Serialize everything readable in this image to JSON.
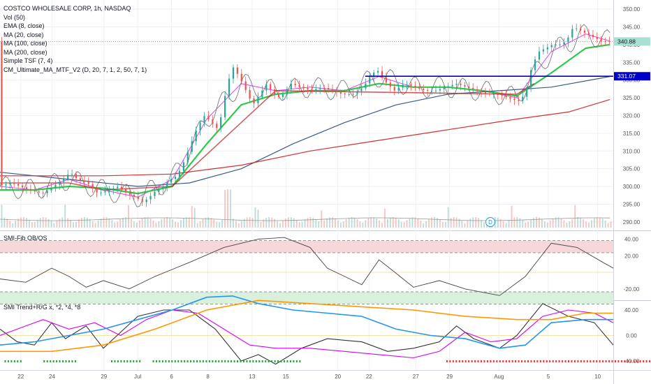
{
  "header": {
    "title": "COSTCO WHOLESALE CORP, 1h, NASDAQ",
    "indicators": [
      "Vol (50)",
      "EMA (8, close)",
      "MA (20, close)",
      "MA (100, close)",
      "MA (200, close)",
      "Simple TSF (7, 4)",
      "CM_Ultimate_MA_MTF_V2 (D, 20, 7, 1, 2, 50, 7, 1)"
    ]
  },
  "panes": {
    "smi_fib_title": "SMI-Fib OB/OS",
    "smi_trend_title": "SMI Trend+R/G x, *2, *4, *8"
  },
  "colors": {
    "up": "#26a69a",
    "down": "#ef5350",
    "ema": "#e040fb",
    "ma20": "#2ec94a",
    "ma100": "#3c5a86",
    "ma200": "#d32f2f",
    "tsf": "#6d6d6d",
    "cm": "#b71c1c",
    "level_line": "#0000cc",
    "price_tag": "#26a69a",
    "level_tag": "#0000cc",
    "smi_line": "#444444",
    "ob_zone": "#f8d7da",
    "os_zone": "#d8f0dc",
    "trend_orange": "#ff9800",
    "trend_blue": "#2196f3",
    "trend_magenta": "#d500f9",
    "trend_black": "#333333"
  },
  "price_markers": {
    "last_price": "340.88",
    "level": "331.07",
    "event_icon": "D"
  },
  "chart_data": [
    {
      "type": "candlestick",
      "title": "COSTCO WHOLESALE CORP, 1h, NASDAQ",
      "x_ticks": [
        "22",
        "24",
        "29",
        "Jul",
        "6",
        "8",
        "13",
        "15",
        "20",
        "22",
        "27",
        "29",
        "Aug",
        "5",
        "10"
      ],
      "y_ticks": [
        "350.00",
        "345.00",
        "340.00",
        "335.00",
        "330.00",
        "325.00",
        "320.00",
        "315.00",
        "310.00",
        "305.00",
        "300.00",
        "295.00",
        "290.00"
      ],
      "ylim": [
        288,
        351
      ],
      "horizontal_level": 331.07,
      "last_price": 340.88,
      "close_path": [
        [
          0,
          300
        ],
        [
          8,
          301
        ],
        [
          18,
          299
        ],
        [
          26,
          298
        ],
        [
          32,
          300
        ],
        [
          38,
          302
        ],
        [
          42,
          304
        ],
        [
          46,
          302
        ],
        [
          52,
          301
        ],
        [
          58,
          298
        ],
        [
          64,
          299
        ],
        [
          70,
          300
        ],
        [
          75,
          298
        ],
        [
          80,
          297
        ],
        [
          84,
          295.5
        ],
        [
          88,
          297
        ],
        [
          92,
          299
        ],
        [
          96,
          300
        ],
        [
          100,
          302
        ],
        [
          104,
          303
        ],
        [
          108,
          307
        ],
        [
          112,
          312
        ],
        [
          116,
          317
        ],
        [
          120,
          320
        ],
        [
          124,
          318
        ],
        [
          128,
          316
        ],
        [
          132,
          326
        ],
        [
          136,
          334
        ],
        [
          140,
          331
        ],
        [
          144,
          327
        ],
        [
          148,
          323
        ],
        [
          152,
          326
        ],
        [
          156,
          329
        ],
        [
          160,
          326
        ],
        [
          164,
          325
        ],
        [
          170,
          329
        ],
        [
          176,
          328
        ],
        [
          182,
          327
        ],
        [
          188,
          328
        ],
        [
          194,
          327
        ],
        [
          200,
          326
        ],
        [
          206,
          326
        ],
        [
          212,
          328
        ],
        [
          216,
          331
        ],
        [
          220,
          333
        ],
        [
          224,
          330
        ],
        [
          230,
          327
        ],
        [
          236,
          329
        ],
        [
          242,
          328
        ],
        [
          248,
          327
        ],
        [
          254,
          327
        ],
        [
          260,
          328
        ],
        [
          266,
          329
        ],
        [
          272,
          328
        ],
        [
          278,
          327
        ],
        [
          284,
          326
        ],
        [
          290,
          326
        ],
        [
          296,
          325
        ],
        [
          302,
          324
        ],
        [
          306,
          326
        ],
        [
          310,
          334
        ],
        [
          314,
          338
        ],
        [
          318,
          339
        ],
        [
          322,
          340
        ],
        [
          326,
          340
        ],
        [
          330,
          341
        ],
        [
          334,
          345
        ],
        [
          338,
          344
        ],
        [
          342,
          343
        ],
        [
          346,
          342
        ],
        [
          350,
          341
        ],
        [
          354,
          340.88
        ]
      ],
      "series": [
        {
          "name": "EMA (8, close)",
          "points": [
            [
              0,
              300
            ],
            [
              20,
              299
            ],
            [
              40,
              302
            ],
            [
              60,
              299
            ],
            [
              80,
              297
            ],
            [
              100,
              302
            ],
            [
              120,
              319
            ],
            [
              140,
              329
            ],
            [
              160,
              327
            ],
            [
              180,
              328
            ],
            [
              200,
              327
            ],
            [
              220,
              331
            ],
            [
              240,
              328
            ],
            [
              260,
              328
            ],
            [
              280,
              327
            ],
            [
              300,
              325
            ],
            [
              320,
              338
            ],
            [
              340,
              343
            ],
            [
              354,
              341
            ]
          ]
        },
        {
          "name": "MA (20, close)",
          "points": [
            [
              0,
              299
            ],
            [
              20,
              299
            ],
            [
              40,
              300
            ],
            [
              60,
              299.5
            ],
            [
              80,
              298
            ],
            [
              100,
              300
            ],
            [
              120,
              312
            ],
            [
              140,
              323
            ],
            [
              160,
              326
            ],
            [
              180,
              327
            ],
            [
              200,
              327
            ],
            [
              220,
              329
            ],
            [
              240,
              328
            ],
            [
              260,
              328
            ],
            [
              280,
              327
            ],
            [
              300,
              325.5
            ],
            [
              320,
              332
            ],
            [
              340,
              339
            ],
            [
              354,
              340
            ]
          ]
        },
        {
          "name": "MA (100, close)",
          "points": [
            [
              0,
              304
            ],
            [
              40,
              302
            ],
            [
              80,
              300
            ],
            [
              110,
              301
            ],
            [
              140,
              305
            ],
            [
              170,
              312
            ],
            [
              200,
              318
            ],
            [
              230,
              323
            ],
            [
              260,
              326
            ],
            [
              290,
              327
            ],
            [
              320,
              328
            ],
            [
              354,
              331
            ]
          ]
        },
        {
          "name": "MA (200, close)",
          "points": [
            [
              0,
              303
            ],
            [
              60,
              303
            ],
            [
              100,
              303.5
            ],
            [
              140,
              306
            ],
            [
              180,
              310
            ],
            [
              220,
              313
            ],
            [
              260,
              316
            ],
            [
              300,
              319
            ],
            [
              330,
              321
            ],
            [
              354,
              324.5
            ]
          ]
        }
      ]
    },
    {
      "type": "line",
      "title": "SMI-Fib OB/OS",
      "y_ticks": [
        "40.00",
        "20.00",
        "-20.00"
      ],
      "ylim": [
        -32,
        48
      ],
      "levels": [
        38.2,
        23.6,
        0,
        -23.6,
        -38.2
      ],
      "series": [
        {
          "name": "",
          "points": [
            [
              0,
              -8
            ],
            [
              15,
              -12
            ],
            [
              30,
              5
            ],
            [
              40,
              -5
            ],
            [
              50,
              -18
            ],
            [
              60,
              -10
            ],
            [
              75,
              -20
            ],
            [
              90,
              -5
            ],
            [
              110,
              12
            ],
            [
              130,
              30
            ],
            [
              150,
              40
            ],
            [
              165,
              42
            ],
            [
              180,
              30
            ],
            [
              190,
              5
            ],
            [
              200,
              -5
            ],
            [
              210,
              -15
            ],
            [
              220,
              15
            ],
            [
              228,
              2
            ],
            [
              240,
              -18
            ],
            [
              255,
              -10
            ],
            [
              270,
              -20
            ],
            [
              290,
              -28
            ],
            [
              305,
              -5
            ],
            [
              320,
              35
            ],
            [
              335,
              30
            ],
            [
              350,
              12
            ],
            [
              356,
              5
            ]
          ]
        }
      ]
    },
    {
      "type": "line",
      "title": "SMI Trend+R/G x, *2, *4, *8",
      "y_ticks": [
        "40.00",
        "0.00",
        "-40.00"
      ],
      "ylim": [
        -52,
        52
      ],
      "series": [
        {
          "name": "",
          "color_key": "trend_black",
          "points": [
            [
              0,
              10
            ],
            [
              10,
              -10
            ],
            [
              20,
              -15
            ],
            [
              30,
              20
            ],
            [
              38,
              -5
            ],
            [
              50,
              15
            ],
            [
              60,
              -20
            ],
            [
              70,
              5
            ],
            [
              80,
              30
            ],
            [
              95,
              40
            ],
            [
              110,
              40
            ],
            [
              125,
              10
            ],
            [
              140,
              -40
            ],
            [
              150,
              -30
            ],
            [
              160,
              -45
            ],
            [
              175,
              -20
            ],
            [
              190,
              -5
            ],
            [
              210,
              -10
            ],
            [
              225,
              -25
            ],
            [
              240,
              -20
            ],
            [
              255,
              -10
            ],
            [
              265,
              15
            ],
            [
              275,
              -5
            ],
            [
              290,
              -20
            ],
            [
              300,
              0
            ],
            [
              315,
              50
            ],
            [
              330,
              30
            ],
            [
              345,
              20
            ],
            [
              356,
              -15
            ]
          ]
        },
        {
          "name": "",
          "color_key": "trend_magenta",
          "points": [
            [
              0,
              0
            ],
            [
              10,
              10
            ],
            [
              25,
              25
            ],
            [
              40,
              10
            ],
            [
              55,
              20
            ],
            [
              70,
              0
            ],
            [
              85,
              25
            ],
            [
              100,
              40
            ],
            [
              115,
              35
            ],
            [
              130,
              10
            ],
            [
              145,
              -15
            ],
            [
              160,
              -20
            ],
            [
              180,
              -20
            ],
            [
              200,
              -25
            ],
            [
              220,
              -30
            ],
            [
              240,
              -35
            ],
            [
              255,
              -25
            ],
            [
              270,
              5
            ],
            [
              285,
              -10
            ],
            [
              300,
              -5
            ],
            [
              315,
              30
            ],
            [
              330,
              40
            ],
            [
              345,
              35
            ],
            [
              356,
              20
            ]
          ]
        },
        {
          "name": "",
          "color_key": "trend_blue",
          "points": [
            [
              0,
              -15
            ],
            [
              20,
              -10
            ],
            [
              40,
              0
            ],
            [
              60,
              10
            ],
            [
              80,
              25
            ],
            [
              100,
              40
            ],
            [
              120,
              60
            ],
            [
              135,
              62
            ],
            [
              150,
              50
            ],
            [
              170,
              40
            ],
            [
              190,
              35
            ],
            [
              210,
              30
            ],
            [
              230,
              10
            ],
            [
              250,
              0
            ],
            [
              270,
              -5
            ],
            [
              290,
              -20
            ],
            [
              305,
              -15
            ],
            [
              320,
              20
            ],
            [
              340,
              25
            ],
            [
              356,
              25
            ]
          ]
        },
        {
          "name": "",
          "color_key": "trend_orange",
          "points": [
            [
              0,
              -25
            ],
            [
              30,
              -25
            ],
            [
              60,
              -15
            ],
            [
              90,
              10
            ],
            [
              120,
              40
            ],
            [
              150,
              55
            ],
            [
              180,
              50
            ],
            [
              210,
              45
            ],
            [
              240,
              40
            ],
            [
              270,
              30
            ],
            [
              300,
              25
            ],
            [
              320,
              25
            ],
            [
              340,
              35
            ],
            [
              356,
              35
            ]
          ]
        }
      ]
    }
  ]
}
